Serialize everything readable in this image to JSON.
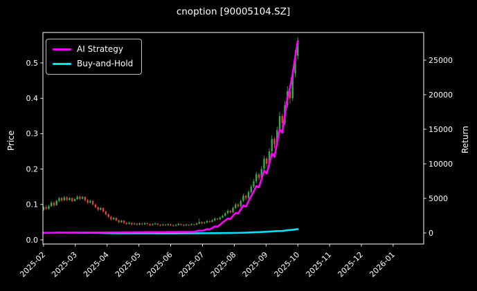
{
  "chart_data": {
    "type": "candlestick+line",
    "title": "cnoption [90005104.SZ]",
    "ylabel_left": "Price",
    "ylabel_right": "Return",
    "grid": false,
    "background": "#000000",
    "colors": {
      "up": "#2eae45",
      "down": "#d9443c",
      "fg": "#ffffff"
    },
    "xlim_months": [
      -0.02,
      11.96
    ],
    "ylim_price": [
      -0.0117,
      0.5859
    ],
    "ylim_return": [
      -1600,
      29000
    ],
    "x_start_label": "2025-02",
    "x_months_span": 8,
    "x_ticks": {
      "values": [
        0,
        1,
        2,
        3,
        4,
        5,
        6,
        7,
        8,
        9,
        10,
        11
      ],
      "labels": [
        "2025-02",
        "2025-03",
        "2025-04",
        "2025-05",
        "2025-06",
        "2025-07",
        "2025-08",
        "2025-09",
        "2025-10",
        "2025-11",
        "2025-12",
        "2026-01"
      ]
    },
    "left_ticks": {
      "values": [
        0,
        0.1,
        0.2,
        0.3,
        0.4,
        0.5
      ],
      "labels": [
        "0.0",
        "0.1",
        "0.2",
        "0.3",
        "0.4",
        "0.5"
      ]
    },
    "right_ticks": {
      "values": [
        0,
        5000,
        10000,
        15000,
        20000,
        25000
      ],
      "labels": [
        "0",
        "5000",
        "10000",
        "15000",
        "20000",
        "25000"
      ]
    },
    "candles": [
      [
        0.085,
        0.096,
        0.082,
        0.092
      ],
      [
        0.092,
        0.097,
        0.085,
        0.088
      ],
      [
        0.088,
        0.099,
        0.086,
        0.095
      ],
      [
        0.095,
        0.11,
        0.093,
        0.105
      ],
      [
        0.105,
        0.109,
        0.094,
        0.098
      ],
      [
        0.098,
        0.113,
        0.096,
        0.11
      ],
      [
        0.11,
        0.122,
        0.107,
        0.118
      ],
      [
        0.118,
        0.121,
        0.108,
        0.112
      ],
      [
        0.112,
        0.124,
        0.11,
        0.12
      ],
      [
        0.12,
        0.123,
        0.109,
        0.113
      ],
      [
        0.113,
        0.121,
        0.111,
        0.118
      ],
      [
        0.118,
        0.12,
        0.106,
        0.11
      ],
      [
        0.11,
        0.118,
        0.108,
        0.115
      ],
      [
        0.115,
        0.126,
        0.113,
        0.122
      ],
      [
        0.122,
        0.125,
        0.112,
        0.116
      ],
      [
        0.116,
        0.124,
        0.114,
        0.121
      ],
      [
        0.121,
        0.123,
        0.108,
        0.112
      ],
      [
        0.112,
        0.115,
        0.101,
        0.105
      ],
      [
        0.105,
        0.113,
        0.103,
        0.11
      ],
      [
        0.11,
        0.112,
        0.097,
        0.1
      ],
      [
        0.1,
        0.103,
        0.089,
        0.092
      ],
      [
        0.092,
        0.095,
        0.081,
        0.085
      ],
      [
        0.085,
        0.093,
        0.083,
        0.09
      ],
      [
        0.09,
        0.092,
        0.077,
        0.08
      ],
      [
        0.08,
        0.083,
        0.069,
        0.072
      ],
      [
        0.072,
        0.075,
        0.062,
        0.065
      ],
      [
        0.065,
        0.068,
        0.055,
        0.058
      ],
      [
        0.058,
        0.065,
        0.056,
        0.062
      ],
      [
        0.062,
        0.064,
        0.052,
        0.055
      ],
      [
        0.055,
        0.057,
        0.047,
        0.05
      ],
      [
        0.05,
        0.057,
        0.048,
        0.054
      ],
      [
        0.054,
        0.056,
        0.045,
        0.048
      ],
      [
        0.048,
        0.05,
        0.042,
        0.045
      ],
      [
        0.045,
        0.051,
        0.043,
        0.048
      ],
      [
        0.048,
        0.049,
        0.041,
        0.044
      ],
      [
        0.044,
        0.049,
        0.042,
        0.046
      ],
      [
        0.046,
        0.047,
        0.04,
        0.043
      ],
      [
        0.043,
        0.049,
        0.041,
        0.046
      ],
      [
        0.046,
        0.048,
        0.041,
        0.044
      ],
      [
        0.044,
        0.05,
        0.042,
        0.047
      ],
      [
        0.047,
        0.048,
        0.042,
        0.045
      ],
      [
        0.045,
        0.046,
        0.039,
        0.042
      ],
      [
        0.042,
        0.047,
        0.04,
        0.044
      ],
      [
        0.044,
        0.049,
        0.042,
        0.046
      ],
      [
        0.046,
        0.047,
        0.04,
        0.043
      ],
      [
        0.043,
        0.044,
        0.038,
        0.041
      ],
      [
        0.041,
        0.046,
        0.039,
        0.043
      ],
      [
        0.043,
        0.045,
        0.039,
        0.042
      ],
      [
        0.042,
        0.047,
        0.04,
        0.044
      ],
      [
        0.044,
        0.045,
        0.039,
        0.042
      ],
      [
        0.042,
        0.043,
        0.037,
        0.04
      ],
      [
        0.04,
        0.045,
        0.038,
        0.042
      ],
      [
        0.042,
        0.048,
        0.04,
        0.045
      ],
      [
        0.045,
        0.046,
        0.04,
        0.043
      ],
      [
        0.043,
        0.044,
        0.038,
        0.041
      ],
      [
        0.041,
        0.046,
        0.039,
        0.043
      ],
      [
        0.043,
        0.044,
        0.039,
        0.042
      ],
      [
        0.042,
        0.047,
        0.04,
        0.044
      ],
      [
        0.044,
        0.045,
        0.04,
        0.043
      ],
      [
        0.043,
        0.049,
        0.041,
        0.046
      ],
      [
        0.046,
        0.06,
        0.044,
        0.05
      ],
      [
        0.05,
        0.052,
        0.044,
        0.047
      ],
      [
        0.047,
        0.052,
        0.045,
        0.049
      ],
      [
        0.049,
        0.056,
        0.047,
        0.053
      ],
      [
        0.053,
        0.055,
        0.048,
        0.051
      ],
      [
        0.051,
        0.058,
        0.049,
        0.055
      ],
      [
        0.055,
        0.063,
        0.053,
        0.06
      ],
      [
        0.06,
        0.062,
        0.055,
        0.058
      ],
      [
        0.058,
        0.066,
        0.056,
        0.063
      ],
      [
        0.063,
        0.071,
        0.061,
        0.068
      ],
      [
        0.068,
        0.078,
        0.065,
        0.075
      ],
      [
        0.075,
        0.086,
        0.072,
        0.082
      ],
      [
        0.082,
        0.084,
        0.074,
        0.078
      ],
      [
        0.078,
        0.094,
        0.076,
        0.09
      ],
      [
        0.09,
        0.104,
        0.087,
        0.1
      ],
      [
        0.1,
        0.103,
        0.09,
        0.095
      ],
      [
        0.095,
        0.114,
        0.092,
        0.11
      ],
      [
        0.11,
        0.13,
        0.107,
        0.125
      ],
      [
        0.125,
        0.128,
        0.112,
        0.118
      ],
      [
        0.118,
        0.14,
        0.115,
        0.135
      ],
      [
        0.135,
        0.156,
        0.131,
        0.15
      ],
      [
        0.15,
        0.172,
        0.146,
        0.165
      ],
      [
        0.165,
        0.192,
        0.16,
        0.185
      ],
      [
        0.185,
        0.189,
        0.168,
        0.175
      ],
      [
        0.175,
        0.208,
        0.171,
        0.2
      ],
      [
        0.2,
        0.238,
        0.195,
        0.23
      ],
      [
        0.23,
        0.235,
        0.206,
        0.215
      ],
      [
        0.215,
        0.259,
        0.21,
        0.25
      ],
      [
        0.25,
        0.295,
        0.244,
        0.285
      ],
      [
        0.285,
        0.29,
        0.258,
        0.27
      ],
      [
        0.27,
        0.32,
        0.264,
        0.31
      ],
      [
        0.31,
        0.362,
        0.303,
        0.35
      ],
      [
        0.35,
        0.356,
        0.318,
        0.33
      ],
      [
        0.33,
        0.392,
        0.324,
        0.38
      ],
      [
        0.38,
        0.434,
        0.372,
        0.42
      ],
      [
        0.42,
        0.428,
        0.385,
        0.4
      ],
      [
        0.4,
        0.484,
        0.393,
        0.47
      ],
      [
        0.47,
        0.536,
        0.46,
        0.52
      ],
      [
        0.52,
        0.572,
        0.51,
        0.555
      ]
    ],
    "series": [
      {
        "name": "AI Strategy",
        "color": "#ff00ff",
        "axis": "return",
        "values": [
          0,
          10,
          15,
          20,
          25,
          20,
          30,
          35,
          30,
          40,
          45,
          40,
          50,
          55,
          50,
          60,
          55,
          65,
          60,
          70,
          65,
          60,
          70,
          75,
          70,
          80,
          75,
          85,
          80,
          90,
          85,
          95,
          90,
          100,
          95,
          105,
          100,
          110,
          105,
          115,
          110,
          120,
          115,
          125,
          120,
          130,
          125,
          135,
          130,
          140,
          135,
          145,
          140,
          150,
          145,
          155,
          150,
          160,
          155,
          250,
          350,
          320,
          400,
          550,
          520,
          700,
          950,
          900,
          1200,
          1500,
          1800,
          2100,
          2000,
          2500,
          2900,
          2800,
          3400,
          4000,
          3800,
          4600,
          5300,
          6000,
          6800,
          6600,
          7800,
          9000,
          8600,
          10000,
          11500,
          11000,
          13000,
          15000,
          14500,
          17000,
          19500,
          21000,
          23000,
          25500,
          27800
        ]
      },
      {
        "name": "Buy-and-Hold",
        "color": "#00e5ff",
        "axis": "return",
        "x": [
          0,
          3,
          6,
          9,
          13,
          16,
          19,
          22,
          24,
          26,
          29,
          32,
          36,
          40,
          45,
          50,
          55,
          58,
          60,
          63,
          66,
          69,
          72,
          75,
          78,
          81,
          84,
          87,
          90,
          92,
          94,
          96,
          98
        ],
        "values": [
          8,
          24,
          39,
          33,
          44,
          32,
          18,
          6,
          -15,
          -32,
          -41,
          -47,
          -49,
          -47,
          -52,
          -53,
          -49,
          -49,
          -41,
          -38,
          -29,
          -20,
          -8,
          12,
          39,
          94,
          135,
          194,
          265,
          288,
          394,
          453,
          553
        ]
      }
    ]
  }
}
